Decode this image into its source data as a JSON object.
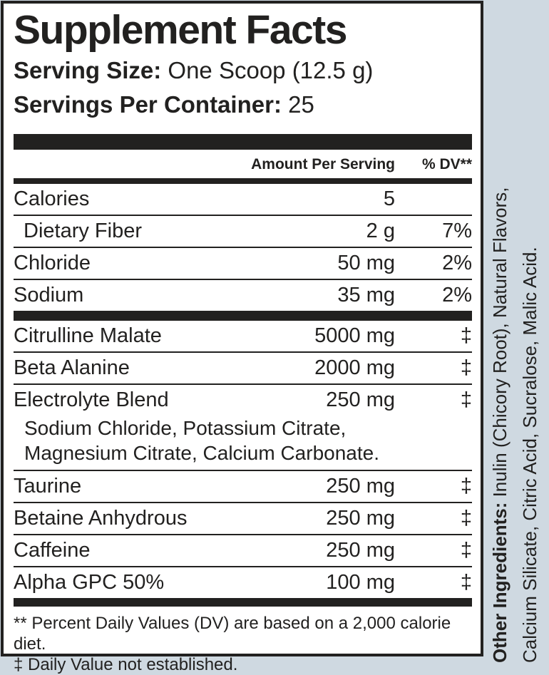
{
  "colors": {
    "background": "#cfd9e1",
    "panel_background": "#ffffff",
    "ink": "#222120"
  },
  "panel": {
    "title": "Supplement Facts",
    "serving_size_label": "Serving Size:",
    "serving_size_value": "One Scoop (12.5 g)",
    "servings_per_container_label": "Servings Per Container:",
    "servings_per_container_value": "25",
    "columns": {
      "amount_header": "Amount Per Serving",
      "dv_header": "% DV**"
    },
    "nutrients": [
      {
        "name": "Calories",
        "amount": "5",
        "dv": "",
        "indent": false
      },
      {
        "name": "Dietary Fiber",
        "amount": "2 g",
        "dv": "7%",
        "indent": true
      },
      {
        "name": "Chloride",
        "amount": "50 mg",
        "dv": "2%",
        "indent": false
      },
      {
        "name": "Sodium",
        "amount": "35 mg",
        "dv": "2%",
        "indent": false
      }
    ],
    "actives": [
      {
        "name": "Citrulline Malate",
        "amount": "5000 mg",
        "dv": "‡"
      },
      {
        "name": "Beta Alanine",
        "amount": "2000 mg",
        "dv": "‡"
      },
      {
        "name": "Electrolyte Blend",
        "amount": "250 mg",
        "dv": "‡",
        "sub": [
          "Sodium Chloride, Potassium Citrate,",
          "Magnesium Citrate, Calcium Carbonate."
        ]
      },
      {
        "name": "Taurine",
        "amount": "250 mg",
        "dv": "‡"
      },
      {
        "name": "Betaine Anhydrous",
        "amount": "250 mg",
        "dv": "‡"
      },
      {
        "name": "Caffeine",
        "amount": "250 mg",
        "dv": "‡"
      },
      {
        "name": "Alpha GPC 50%",
        "amount": "100 mg",
        "dv": "‡"
      }
    ],
    "footnotes": [
      "** Percent Daily Values (DV) are based on a 2,000 calorie diet.",
      "‡ Daily Value not established."
    ]
  },
  "side_panel": {
    "other_ingredients_label": "Other Ingredients:",
    "line1_rest": " Inulin (Chicory Root), Natural Flavors,",
    "line2": "Calcium Silicate, Citric Acid, Sucralose, Malic Acid."
  }
}
